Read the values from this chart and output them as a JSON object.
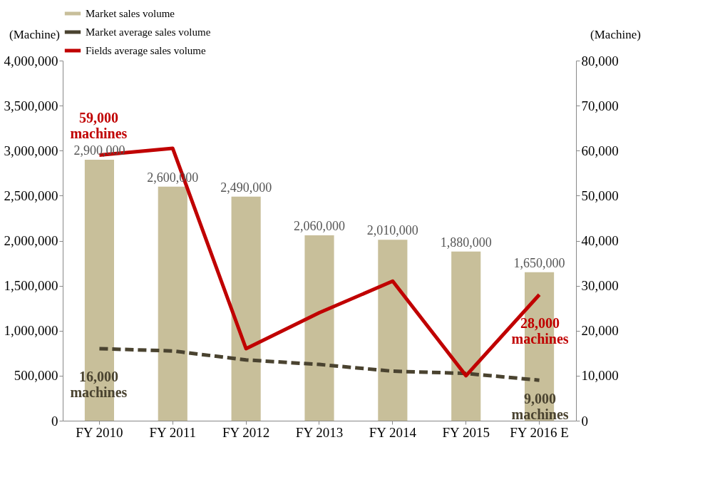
{
  "chart_data": {
    "type": "bar",
    "categories": [
      "FY 2010",
      "FY 2011",
      "FY 2012",
      "FY 2013",
      "FY 2014",
      "FY 2015",
      "FY 2016 E"
    ],
    "series": [
      {
        "name": "Market sales volume",
        "color": "#c8bf9a",
        "values": [
          2900000,
          2600000,
          2490000,
          2060000,
          2010000,
          1880000,
          1650000
        ],
        "value_labels": [
          "2,900,000",
          "2,600,000",
          "2,490,000",
          "2,060,000",
          "2,010,000",
          "1,880,000",
          "1,650,000"
        ]
      },
      {
        "name": "Market average sales volume",
        "type": "line",
        "axis": "y2",
        "line_style": "dashed",
        "color": "#4a4330",
        "values": [
          16000,
          15500,
          13500,
          12500,
          11000,
          10500,
          9000
        ]
      },
      {
        "name": "Fields average sales volume",
        "type": "line",
        "axis": "y2",
        "line_style": "solid",
        "color": "#c00000",
        "values": [
          59000,
          60500,
          16000,
          24000,
          31000,
          10000,
          28000
        ]
      }
    ],
    "ylabel": "(Machine)",
    "y2label": "(Machine)",
    "ylim": [
      0,
      4000000
    ],
    "yticks": [
      0,
      {
        "value": 500000,
        "label": "500,000"
      },
      {
        "value": 1000000,
        "label": "1,000,000"
      },
      {
        "value": 1500000,
        "label": "1,500,000"
      },
      {
        "value": 2000000,
        "label": "2,000,000"
      },
      {
        "value": 2500000,
        "label": "2,500,000"
      },
      {
        "value": 3000000,
        "label": "3,000,000"
      },
      {
        "value": 3500000,
        "label": "3,500,000"
      },
      {
        "value": 4000000,
        "label": "4,000,000"
      }
    ],
    "y2lim": [
      0,
      80000
    ],
    "y2ticks": [
      0,
      {
        "value": 10000,
        "label": "10,000"
      },
      {
        "value": 20000,
        "label": "20,000"
      },
      {
        "value": 30000,
        "label": "30,000"
      },
      {
        "value": 40000,
        "label": "40,000"
      },
      {
        "value": 50000,
        "label": "50,000"
      },
      {
        "value": 60000,
        "label": "60,000"
      },
      {
        "value": 70000,
        "label": "70,000"
      },
      {
        "value": 80000,
        "label": "80,000"
      }
    ],
    "annotations": [
      "59,000 machines",
      "16,000 machines",
      "28,000 machines",
      "9,000 machines"
    ],
    "legend": "top",
    "grid": false,
    "marker": "none"
  }
}
